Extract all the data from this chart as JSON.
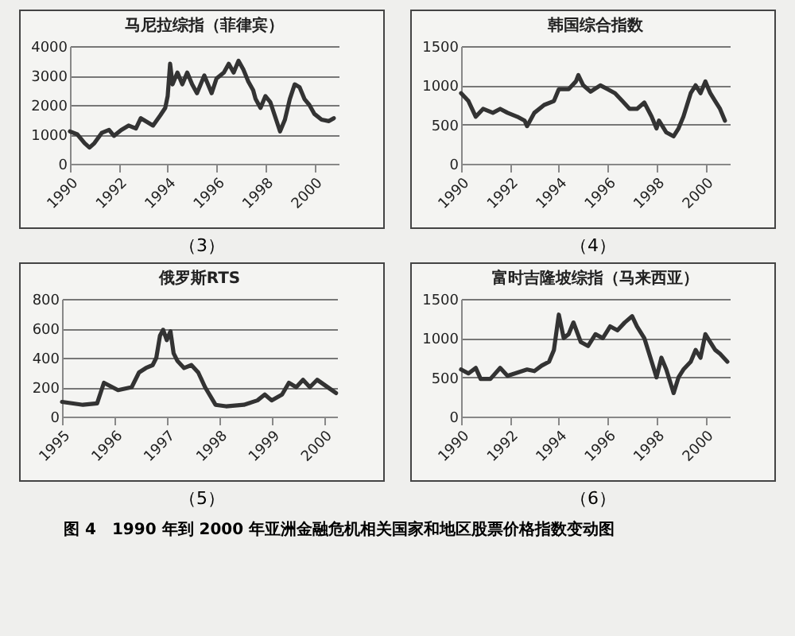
{
  "chart_data": [
    {
      "type": "line",
      "title": "马尼拉综指（菲律宾）",
      "annotations": [
        "（3）"
      ],
      "xlim": [
        1990,
        2001
      ],
      "ylim": [
        0,
        4000
      ],
      "yticks": [
        0,
        1000,
        2000,
        3000,
        4000
      ],
      "grid": "y",
      "legend": false,
      "marker": "none",
      "line_style": "solid",
      "xticks": [
        1990,
        1992,
        1994,
        1996,
        1998,
        2000
      ],
      "series": [
        {
          "color": "#333333",
          "x": [
            1990.0,
            1990.3,
            1990.6,
            1990.8,
            1991.0,
            1991.3,
            1991.6,
            1991.8,
            1992.1,
            1992.4,
            1992.7,
            1992.9,
            1993.2,
            1993.4,
            1993.7,
            1993.9,
            1994.0,
            1994.1,
            1994.2,
            1994.4,
            1994.6,
            1994.8,
            1995.0,
            1995.2,
            1995.5,
            1995.8,
            1996.0,
            1996.3,
            1996.5,
            1996.7,
            1996.9,
            1997.1,
            1997.3,
            1997.5,
            1997.6,
            1997.8,
            1998.0,
            1998.2,
            1998.4,
            1998.6,
            1998.8,
            1999.0,
            1999.2,
            1999.4,
            1999.6,
            1999.8,
            2000.0,
            2000.3,
            2000.6,
            2000.8
          ],
          "values": [
            1100,
            1000,
            700,
            550,
            700,
            1050,
            1150,
            950,
            1150,
            1300,
            1200,
            1550,
            1400,
            1300,
            1650,
            1900,
            2300,
            3400,
            2700,
            3100,
            2700,
            3100,
            2700,
            2400,
            3000,
            2400,
            2900,
            3100,
            3400,
            3100,
            3500,
            3200,
            2800,
            2500,
            2200,
            1900,
            2300,
            2100,
            1600,
            1100,
            1500,
            2200,
            2700,
            2600,
            2200,
            2000,
            1700,
            1500,
            1450,
            1550
          ]
        }
      ]
    },
    {
      "type": "line",
      "title": "韩国综合指数",
      "annotations": [
        "（4）"
      ],
      "xlim": [
        1990,
        2001
      ],
      "ylim": [
        0,
        1500
      ],
      "yticks": [
        0,
        500,
        1000,
        1500
      ],
      "grid": "y",
      "legend": false,
      "marker": "none",
      "line_style": "solid",
      "xticks": [
        1990,
        1992,
        1994,
        1996,
        1998,
        2000
      ],
      "series": [
        {
          "color": "#333333",
          "x": [
            1990.0,
            1990.3,
            1990.6,
            1990.9,
            1991.3,
            1991.6,
            1991.9,
            1992.3,
            1992.6,
            1992.7,
            1993.0,
            1993.4,
            1993.8,
            1994.0,
            1994.4,
            1994.7,
            1994.8,
            1995.0,
            1995.3,
            1995.7,
            1996.0,
            1996.3,
            1996.6,
            1996.9,
            1997.2,
            1997.5,
            1997.8,
            1998.0,
            1998.1,
            1998.4,
            1998.7,
            1998.9,
            1999.1,
            1999.4,
            1999.6,
            1999.8,
            2000.0,
            2000.2,
            2000.4,
            2000.6,
            2000.8
          ],
          "values": [
            900,
            800,
            600,
            700,
            650,
            700,
            650,
            600,
            550,
            480,
            650,
            750,
            800,
            950,
            950,
            1050,
            1130,
            1000,
            920,
            1000,
            950,
            900,
            800,
            700,
            700,
            780,
            600,
            450,
            550,
            400,
            350,
            450,
            600,
            900,
            1000,
            900,
            1050,
            900,
            800,
            700,
            550
          ]
        }
      ]
    },
    {
      "type": "line",
      "title": "俄罗斯RTS",
      "annotations": [
        "（5）"
      ],
      "xlim": [
        1995,
        2000.25
      ],
      "ylim": [
        0,
        800
      ],
      "yticks": [
        0,
        200,
        400,
        600,
        800
      ],
      "grid": "y",
      "legend": false,
      "marker": "none",
      "line_style": "solid",
      "xticks": [
        1995,
        1996,
        1997,
        1998,
        1999,
        2000
      ],
      "series": [
        {
          "color": "#333333",
          "x": [
            1995.0,
            1995.4,
            1995.67,
            1995.8,
            1996.07,
            1996.33,
            1996.47,
            1996.6,
            1996.73,
            1996.8,
            1996.87,
            1996.93,
            1997.0,
            1997.07,
            1997.13,
            1997.2,
            1997.33,
            1997.47,
            1997.6,
            1997.73,
            1997.93,
            1998.13,
            1998.47,
            1998.73,
            1998.87,
            1999.0,
            1999.2,
            1999.33,
            1999.47,
            1999.6,
            1999.73,
            1999.87,
            2000.07,
            2000.23
          ],
          "values": [
            100,
            80,
            90,
            230,
            180,
            200,
            300,
            330,
            350,
            400,
            550,
            590,
            520,
            580,
            430,
            380,
            330,
            350,
            300,
            200,
            80,
            70,
            80,
            110,
            150,
            110,
            150,
            230,
            200,
            250,
            200,
            250,
            200,
            160
          ]
        }
      ]
    },
    {
      "type": "line",
      "title": "富时吉隆坡综指（马来西亚）",
      "annotations": [
        "（6）",
        "图 4　1990 年到 2000 年亚洲金融危机相关国家和地区股票价格指数变动图"
      ],
      "xlim": [
        1990,
        2001
      ],
      "ylim": [
        0,
        1500
      ],
      "yticks": [
        0,
        500,
        1000,
        1500
      ],
      "grid": "y",
      "legend": false,
      "marker": "none",
      "line_style": "solid",
      "xticks": [
        1990,
        1992,
        1994,
        1996,
        1998,
        2000
      ],
      "series": [
        {
          "color": "#333333",
          "x": [
            1990.0,
            1990.3,
            1990.6,
            1990.8,
            1991.2,
            1991.6,
            1991.9,
            1992.3,
            1992.7,
            1993.0,
            1993.3,
            1993.6,
            1993.8,
            1994.0,
            1994.2,
            1994.4,
            1994.6,
            1994.9,
            1995.2,
            1995.5,
            1995.8,
            1996.1,
            1996.4,
            1996.7,
            1997.0,
            1997.2,
            1997.5,
            1997.7,
            1997.9,
            1998.0,
            1998.2,
            1998.4,
            1998.6,
            1998.7,
            1998.9,
            1999.1,
            1999.4,
            1999.6,
            1999.8,
            2000.0,
            2000.2,
            2000.4,
            2000.6,
            2000.9
          ],
          "values": [
            600,
            550,
            620,
            480,
            480,
            620,
            520,
            560,
            600,
            580,
            650,
            700,
            850,
            1300,
            1000,
            1050,
            1200,
            950,
            900,
            1050,
            1000,
            1150,
            1100,
            1200,
            1280,
            1150,
            1000,
            800,
            600,
            500,
            750,
            600,
            400,
            300,
            500,
            600,
            700,
            850,
            750,
            1050,
            950,
            850,
            800,
            700
          ]
        }
      ]
    }
  ]
}
